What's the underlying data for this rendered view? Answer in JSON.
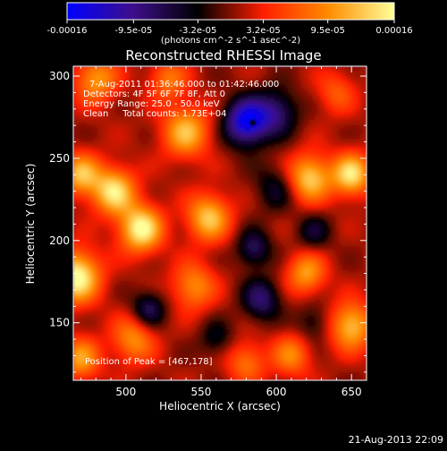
{
  "chart_data": {
    "type": "heatmap",
    "title": "Reconstructed RHESSI Image",
    "xlabel": "Heliocentric X (arcsec)",
    "ylabel": "Heliocentric Y (arcsec)",
    "xlim": [
      465,
      660
    ],
    "ylim": [
      115,
      306
    ],
    "xticks": [
      500,
      550,
      600,
      650
    ],
    "yticks": [
      150,
      200,
      250,
      300
    ],
    "colorbar": {
      "ticks": [
        "-0.00016",
        "-9.5e-05",
        "-3.2e-05",
        "3.2e-05",
        "9.5e-05",
        "0.00016"
      ],
      "units": "(photons cm^-2 s^-1 asec^-2)",
      "range": [
        -0.00016,
        0.00016
      ],
      "colormap": [
        "#0000ff",
        "#3d0f8c",
        "#000000",
        "#ff1e00",
        "#ff8c00",
        "#ffff9a"
      ]
    },
    "info_lines": [
      "7-Aug-2011 01:36:46.000 to 01:42:46.000",
      "Detectors: 4F 5F 6F 7F 8F, Att 0",
      "Energy Range: 25.0 - 50.0 keV",
      "Clean     Total counts: 1.73E+04"
    ],
    "peak_label": "Position of Peak = [467,178]",
    "peak_position": [
      467,
      178
    ],
    "min_position": [
      584,
      272
    ],
    "sources": [
      {
        "x": 467,
        "y": 178,
        "amp": 1.0,
        "sigma": 11
      },
      {
        "x": 510,
        "y": 207,
        "amp": 0.95,
        "sigma": 10
      },
      {
        "x": 492,
        "y": 230,
        "amp": 0.85,
        "sigma": 10
      },
      {
        "x": 470,
        "y": 240,
        "amp": 0.7,
        "sigma": 9
      },
      {
        "x": 540,
        "y": 266,
        "amp": 0.7,
        "sigma": 11
      },
      {
        "x": 480,
        "y": 298,
        "amp": 0.6,
        "sigma": 10
      },
      {
        "x": 528,
        "y": 298,
        "amp": 0.45,
        "sigma": 9
      },
      {
        "x": 555,
        "y": 214,
        "amp": 0.75,
        "sigma": 10
      },
      {
        "x": 622,
        "y": 238,
        "amp": 0.8,
        "sigma": 10
      },
      {
        "x": 650,
        "y": 240,
        "amp": 0.85,
        "sigma": 9
      },
      {
        "x": 545,
        "y": 172,
        "amp": 0.55,
        "sigma": 10
      },
      {
        "x": 505,
        "y": 140,
        "amp": 0.55,
        "sigma": 10
      },
      {
        "x": 470,
        "y": 128,
        "amp": 0.6,
        "sigma": 9
      },
      {
        "x": 650,
        "y": 148,
        "amp": 0.75,
        "sigma": 10
      },
      {
        "x": 620,
        "y": 180,
        "amp": 0.6,
        "sigma": 9
      },
      {
        "x": 610,
        "y": 130,
        "amp": 0.5,
        "sigma": 9
      },
      {
        "x": 580,
        "y": 126,
        "amp": 0.45,
        "sigma": 9
      },
      {
        "x": 640,
        "y": 290,
        "amp": 0.35,
        "sigma": 9
      },
      {
        "x": 580,
        "y": 272,
        "amp": -1.0,
        "sigma": 10
      },
      {
        "x": 600,
        "y": 278,
        "amp": -0.55,
        "sigma": 10
      },
      {
        "x": 585,
        "y": 195,
        "amp": -0.5,
        "sigma": 8
      },
      {
        "x": 590,
        "y": 164,
        "amp": -0.55,
        "sigma": 9
      },
      {
        "x": 515,
        "y": 158,
        "amp": -0.5,
        "sigma": 8
      },
      {
        "x": 600,
        "y": 232,
        "amp": -0.35,
        "sigma": 10
      },
      {
        "x": 625,
        "y": 150,
        "amp": -0.3,
        "sigma": 8
      },
      {
        "x": 625,
        "y": 205,
        "amp": -0.35,
        "sigma": 8
      },
      {
        "x": 560,
        "y": 140,
        "amp": -0.3,
        "sigma": 8
      }
    ]
  },
  "footer": {
    "date": "21-Aug-2013 22:09"
  }
}
